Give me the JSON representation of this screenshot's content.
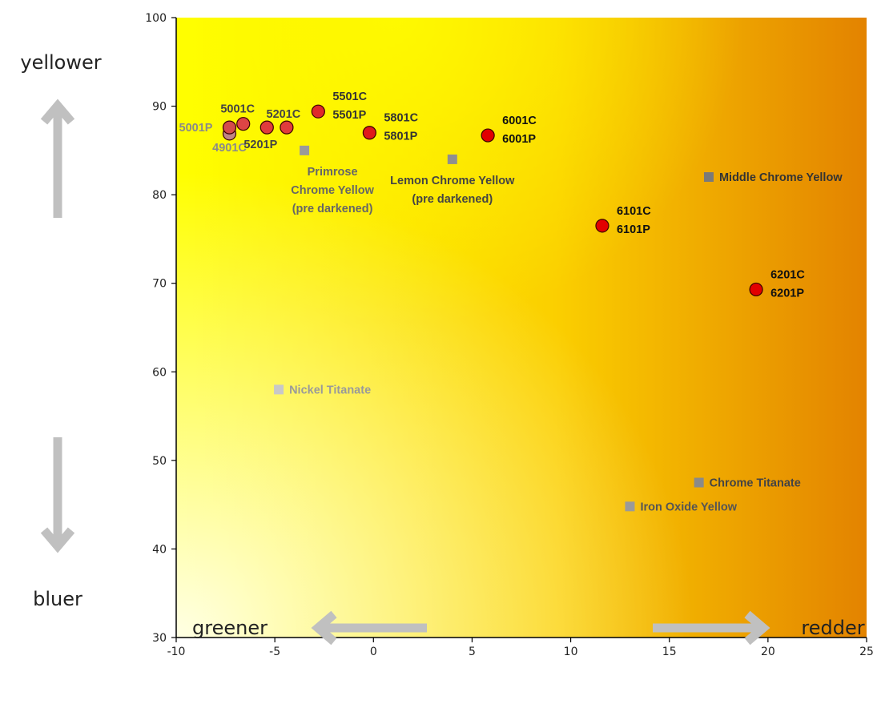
{
  "direction_labels": {
    "up": "yellower",
    "down": "bluer",
    "left": "greener",
    "right": "redder"
  },
  "colors": {
    "gradient_light": "#ffffe4",
    "gradient_yellow": "#ffff00",
    "gradient_orange": "#e38300",
    "arrow": "#c0c0c0",
    "pigment_red": "#e20000",
    "pigment_outline": "#3a0000"
  },
  "chart_data": {
    "type": "scatter",
    "xlim": [
      -10,
      25
    ],
    "ylim": [
      30,
      100
    ],
    "x_ticks": [
      -10,
      -5,
      0,
      5,
      10,
      15,
      20,
      25
    ],
    "y_ticks": [
      30,
      40,
      50,
      60,
      70,
      80,
      90,
      100
    ],
    "grid": false,
    "series": [
      {
        "marker": "circle",
        "points": [
          {
            "x": -7.3,
            "y": 86.9,
            "labels": [
              "4901C"
            ],
            "color": "#c08686",
            "label_color": "#8a8a8a"
          },
          {
            "x": -7.3,
            "y": 87.6,
            "labels": [
              "5001P"
            ],
            "color": "#d44c4c",
            "label_color": "#8a8a8a"
          },
          {
            "x": -6.6,
            "y": 88.0,
            "labels": [
              "5001C"
            ],
            "color": "#dd4545",
            "label_color": "#444444"
          },
          {
            "x": -5.4,
            "y": 87.6,
            "labels": [
              "5201P"
            ],
            "color": "#e03c3c",
            "label_color": "#444444"
          },
          {
            "x": -4.4,
            "y": 87.6,
            "labels": [
              "5201C"
            ],
            "color": "#e03c3c",
            "label_color": "#444444"
          },
          {
            "x": -2.8,
            "y": 89.4,
            "labels": [
              "5501C",
              "5501P"
            ],
            "color": "#e02a2a",
            "label_color": "#333333"
          },
          {
            "x": -0.2,
            "y": 87.0,
            "labels": [
              "5801C",
              "5801P"
            ],
            "color": "#e01a1a",
            "label_color": "#333333"
          },
          {
            "x": 5.8,
            "y": 86.7,
            "labels": [
              "6001C",
              "6001P"
            ],
            "color": "#e20000",
            "label_color": "#111111"
          },
          {
            "x": 11.6,
            "y": 76.5,
            "labels": [
              "6101C",
              "6101P"
            ],
            "color": "#e20000",
            "label_color": "#111111"
          },
          {
            "x": 19.4,
            "y": 69.3,
            "labels": [
              "6201C",
              "6201P"
            ],
            "color": "#e20000",
            "label_color": "#111111"
          }
        ]
      },
      {
        "marker": "square",
        "points": [
          {
            "x": -3.5,
            "y": 85.0,
            "labels": [
              "Primrose",
              "Chrome Yellow",
              "(pre darkened)"
            ],
            "color": "#9a9a9a",
            "label_color": "#666666"
          },
          {
            "x": 4.0,
            "y": 84.0,
            "labels": [
              "Lemon Chrome Yellow",
              "(pre darkened)"
            ],
            "color": "#8f8f8f",
            "label_color": "#444444"
          },
          {
            "x": 17.0,
            "y": 82.0,
            "labels": [
              "Middle Chrome Yellow"
            ],
            "color": "#7a7a7a",
            "label_color": "#333333"
          },
          {
            "x": -4.8,
            "y": 58.0,
            "labels": [
              "Nickel Titanate"
            ],
            "color": "#c8c8c8",
            "label_color": "#9a9a9a"
          },
          {
            "x": 16.5,
            "y": 47.5,
            "labels": [
              "Chrome Titanate"
            ],
            "color": "#8a8a8a",
            "label_color": "#444444"
          },
          {
            "x": 13.0,
            "y": 44.8,
            "labels": [
              "Iron Oxide Yellow"
            ],
            "color": "#9a9a9a",
            "label_color": "#555555"
          }
        ]
      }
    ]
  }
}
